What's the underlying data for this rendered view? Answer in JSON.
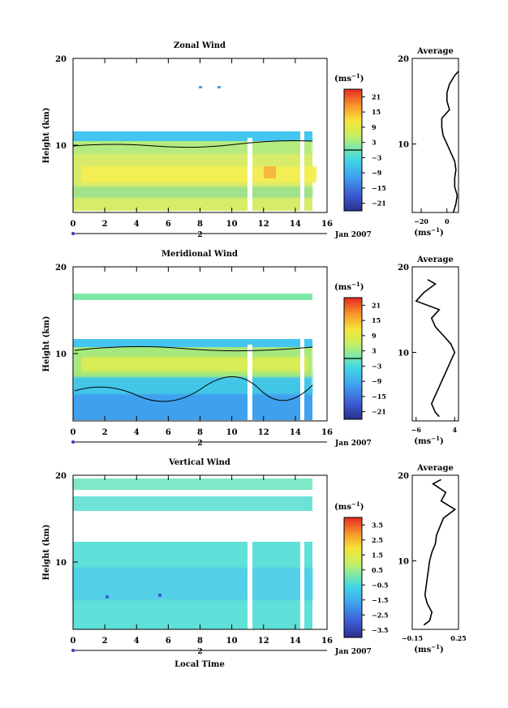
{
  "figure": {
    "date_label": "Jan 2007",
    "xlabel": "Local Time",
    "day_marker": "2"
  },
  "chart_data": [
    {
      "type": "heatmap",
      "title": "Zonal Wind",
      "ylabel": "Height (km)",
      "xlim": [
        0,
        16
      ],
      "ylim": [
        2,
        20
      ],
      "xticks": [
        0,
        2,
        4,
        6,
        8,
        10,
        12,
        14,
        16
      ],
      "yticks": [
        10,
        20
      ],
      "colorbar": {
        "unit": "(ms",
        "unit_sup": "−1",
        "unit_close": ")",
        "ticks": [
          "21",
          "15",
          "9",
          "3",
          "−3",
          "−9",
          "−15",
          "−21"
        ],
        "tick_values": [
          21,
          15,
          9,
          3,
          -3,
          -9,
          -15,
          -21
        ],
        "range": [
          -24,
          24
        ],
        "zero_line": true
      },
      "data_coverage": "0-15 h, about 3-12 km, sparse above; gaps near 11.2 h and 14.5 h",
      "profile": {
        "title": "Average",
        "xlabel": "(ms",
        "xlabel_sup": "−1",
        "xlabel_close": ")",
        "xticks": [
          "−20",
          "0"
        ],
        "xtick_values": [
          -20,
          0
        ],
        "xlim": [
          -27,
          9
        ],
        "height_km": [
          2,
          3,
          4,
          5,
          6,
          7,
          8,
          9,
          10,
          11,
          12,
          13,
          14,
          15,
          16,
          17,
          18,
          18.5
        ],
        "value_ms": [
          5,
          7,
          8,
          6,
          6,
          7,
          6,
          3,
          0,
          -3,
          -4,
          -4,
          2,
          0,
          0,
          2,
          6,
          9
        ]
      }
    },
    {
      "type": "heatmap",
      "title": "Meridional Wind",
      "ylabel": "Height (km)",
      "xlim": [
        0,
        16
      ],
      "ylim": [
        2,
        20
      ],
      "xticks": [
        0,
        2,
        4,
        6,
        8,
        10,
        12,
        14,
        16
      ],
      "yticks": [
        10,
        20
      ],
      "colorbar": {
        "unit": "(ms",
        "unit_sup": "−1",
        "unit_close": ")",
        "ticks": [
          "21",
          "15",
          "9",
          "3",
          "−3",
          "−9",
          "−15",
          "−21"
        ],
        "tick_values": [
          21,
          15,
          9,
          3,
          -3,
          -9,
          -15,
          -21
        ],
        "range": [
          -24,
          24
        ],
        "zero_line": true
      },
      "data_coverage": "0-15 h, about 2-11.5 km plus a thin layer near 17.5 km",
      "profile": {
        "title": "Average",
        "xlabel": "(ms",
        "xlabel_sup": "−1",
        "xlabel_close": ")",
        "xticks": [
          "−6",
          "4"
        ],
        "xtick_values": [
          -6,
          4
        ],
        "xlim": [
          -7,
          5
        ],
        "height_km": [
          2.5,
          3,
          4,
          5,
          6,
          7,
          8,
          9,
          10,
          11,
          12,
          13,
          14,
          15,
          16,
          17,
          18,
          18.5
        ],
        "value_ms": [
          0,
          -1,
          -2,
          -1,
          0,
          1,
          2,
          3,
          4,
          3,
          1,
          -1,
          -2,
          0,
          -6,
          -4,
          -1,
          -3
        ]
      }
    },
    {
      "type": "heatmap",
      "title": "Vertical Wind",
      "ylabel": "Height (km)",
      "xlim": [
        0,
        16
      ],
      "ylim": [
        2,
        20
      ],
      "xticks": [
        0,
        2,
        4,
        6,
        8,
        10,
        12,
        14,
        16
      ],
      "yticks": [
        10,
        20
      ],
      "colorbar": {
        "unit": "(ms",
        "unit_sup": "−1",
        "unit_close": ")",
        "ticks": [
          "3.5",
          "2.5",
          "1.5",
          "0.5",
          "−0.5",
          "−1.5",
          "−2.5",
          "−3.5"
        ],
        "tick_values": [
          3.5,
          2.5,
          1.5,
          0.5,
          -0.5,
          -1.5,
          -2.5,
          -3.5
        ],
        "range": [
          -4,
          4
        ],
        "zero_line": false
      },
      "data_coverage": "0-15 h, about 2-12.5 km plus patchy layers between 16 and 19.5 km",
      "profile": {
        "title": "Average",
        "xlabel": "(ms",
        "xlabel_sup": "−1",
        "xlabel_close": ")",
        "xticks": [
          "−0.15",
          "0.25"
        ],
        "xtick_values": [
          -0.15,
          0.25
        ],
        "xlim": [
          -0.15,
          0.25
        ],
        "height_km": [
          2.5,
          3,
          4,
          5,
          6,
          7,
          8,
          9,
          10,
          11,
          12,
          13,
          14,
          15,
          16,
          17,
          18,
          19,
          19.5
        ],
        "value_ms": [
          -0.05,
          0.0,
          0.02,
          -0.02,
          -0.04,
          -0.03,
          -0.02,
          -0.01,
          0.0,
          0.02,
          0.05,
          0.06,
          0.09,
          0.12,
          0.22,
          0.1,
          0.14,
          0.03,
          0.1
        ]
      }
    }
  ]
}
